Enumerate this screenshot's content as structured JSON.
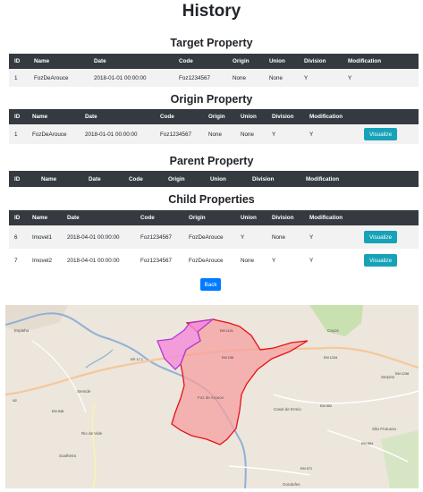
{
  "page": {
    "title": "History",
    "back_label": "Back",
    "visualize_label": "Visualize"
  },
  "target": {
    "title": "Target Property",
    "headers": [
      "ID",
      "Name",
      "Date",
      "Code",
      "Origin",
      "Union",
      "Division",
      "Modification"
    ],
    "rows": [
      {
        "id": "1",
        "name": "FozDeArouce",
        "date": "2018-01-01 00:00:00",
        "code": "Foz1234567",
        "origin": "None",
        "union": "None",
        "division": "Y",
        "modification": "Y"
      }
    ]
  },
  "origin": {
    "title": "Origin Property",
    "headers": [
      "ID",
      "Name",
      "Date",
      "Code",
      "Origin",
      "Union",
      "Division",
      "Modification"
    ],
    "rows": [
      {
        "id": "1",
        "name": "FozDeArouce",
        "date": "2018-01-01 00:00:00",
        "code": "Foz1234567",
        "origin": "None",
        "union": "None",
        "division": "Y",
        "modification": "Y"
      }
    ]
  },
  "parent": {
    "title": "Parent Property",
    "headers": [
      "ID",
      "Name",
      "Date",
      "Code",
      "Origin",
      "Union",
      "Division",
      "Modification"
    ]
  },
  "child": {
    "title": "Child Properties",
    "headers": [
      "ID",
      "Name",
      "Date",
      "Code",
      "Origin",
      "Union",
      "Division",
      "Modification"
    ],
    "rows": [
      {
        "id": "6",
        "name": "Imovel1",
        "date": "2018-04-01 00:00:00",
        "code": "Foz1234567",
        "origin": "FozDeArouce",
        "union": "Y",
        "division": "None",
        "modification": "Y"
      },
      {
        "id": "7",
        "name": "Imovel2",
        "date": "2018-04-01 00:00:00",
        "code": "Foz1234567",
        "origin": "FozDeArouce",
        "union": "None",
        "division": "Y",
        "modification": "Y"
      }
    ]
  },
  "map": {
    "labels": {
      "town_center": "Foz de Arouce",
      "serpins": "Serpins",
      "semide": "Semide",
      "rio_vide": "Rio de Vide",
      "casal": "Casal de Ermio",
      "gondufes": "Gondufes",
      "espinho": "Espinho",
      "soalheira": "Soalheira",
      "sao_frutuoso": "São Frutuoso",
      "cacos": "Caços"
    },
    "roads": {
      "er171": "ER 17-1",
      "em1121": "EM 1121",
      "em236": "EM 236",
      "em1234": "EM 1234",
      "em1236": "EM 1236",
      "em552": "EM 552",
      "em554": "EM 554",
      "em571": "EM 571",
      "em548": "EM 548",
      "n2": "N2"
    },
    "colors": {
      "division_fill": "#f5a0a0",
      "division_stroke": "#e8101a",
      "child_fill": "#f48ad8",
      "child_stroke": "#b43ad8"
    }
  }
}
